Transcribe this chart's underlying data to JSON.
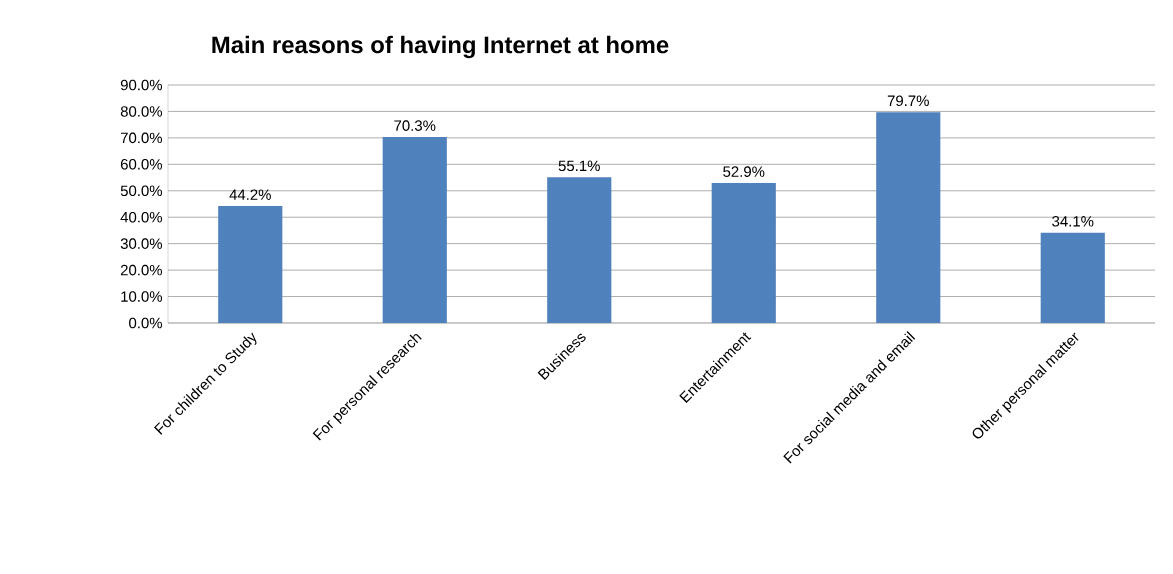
{
  "chart_data": {
    "type": "bar",
    "title": "Main reasons of having Internet at home",
    "categories": [
      "For children to Study",
      "For personal research",
      "Business",
      "Entertainment",
      "For social media and email",
      "Other personal matter"
    ],
    "values": [
      44.2,
      70.3,
      55.1,
      52.9,
      79.7,
      34.1
    ],
    "value_labels": [
      "44.2%",
      "70.3%",
      "55.1%",
      "52.9%",
      "79.7%",
      "34.1%"
    ],
    "color": "#4f81bd",
    "ylim": [
      0,
      90
    ],
    "yticks": [
      {
        "value": 0,
        "label": "0.0%"
      },
      {
        "value": 10,
        "label": "10.0%"
      },
      {
        "value": 20,
        "label": "20.0%"
      },
      {
        "value": 30,
        "label": "30.0%"
      },
      {
        "value": 40,
        "label": "40.0%"
      },
      {
        "value": 50,
        "label": "50.0%"
      },
      {
        "value": 60,
        "label": "60.0%"
      },
      {
        "value": 70,
        "label": "70.0%"
      },
      {
        "value": 80,
        "label": "80.0%"
      },
      {
        "value": 90,
        "label": "90.0%"
      }
    ],
    "grid": "y"
  }
}
